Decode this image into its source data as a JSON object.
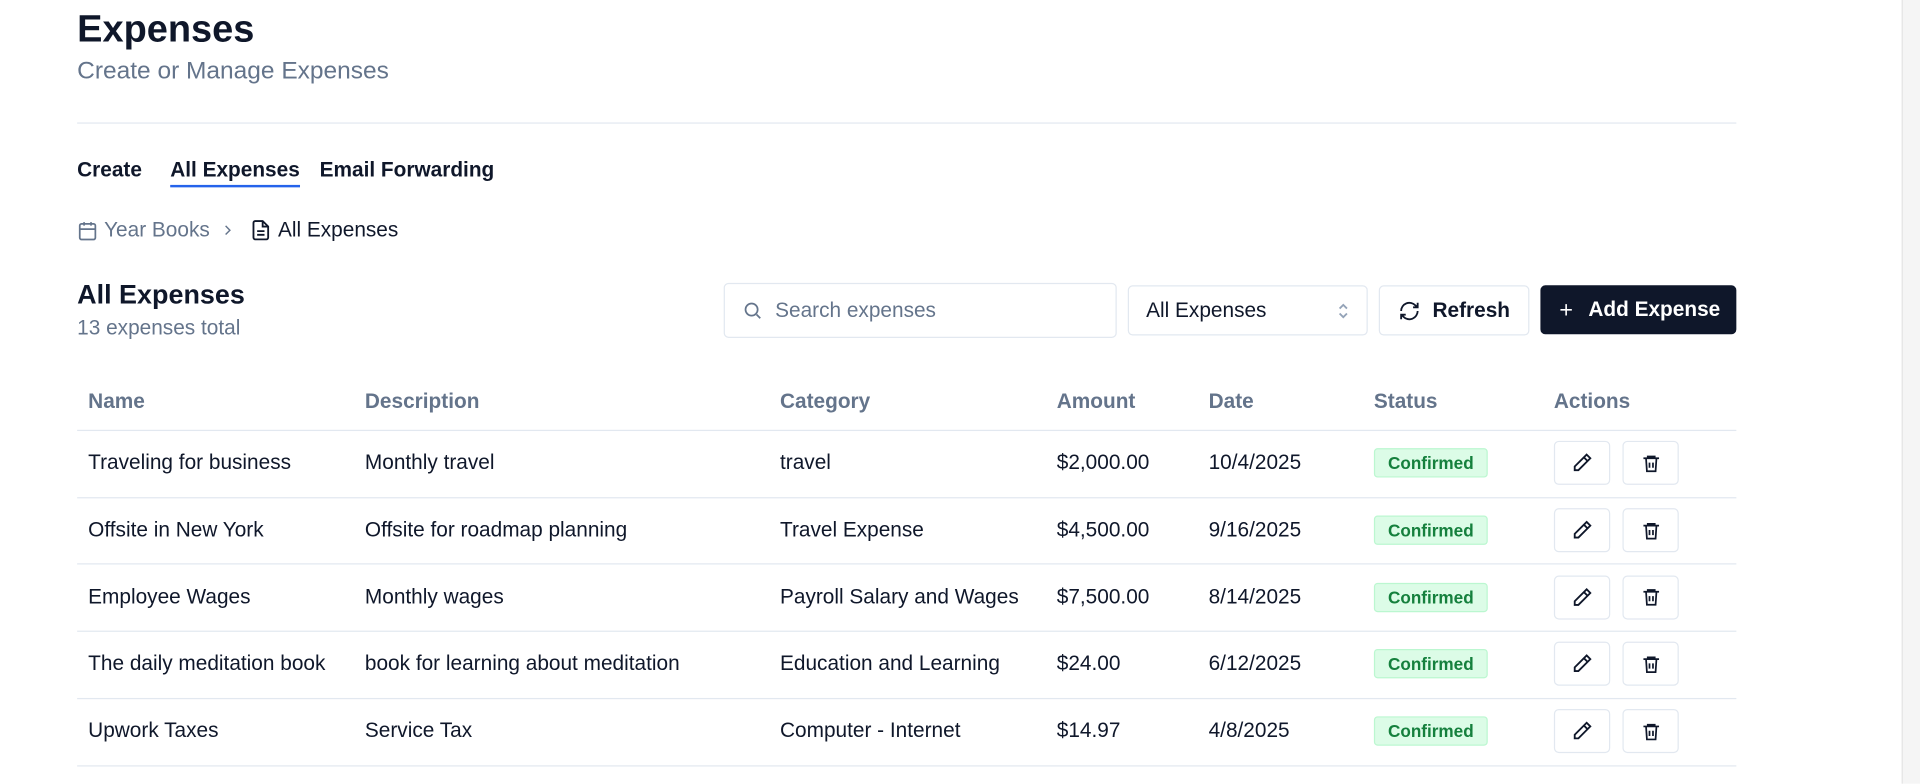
{
  "header": {
    "title": "Expenses",
    "subtitle": "Create or Manage Expenses"
  },
  "tabs": [
    "Create",
    "All Expenses",
    "Email Forwarding"
  ],
  "breadcrumb": [
    "Year Books",
    "All Expenses"
  ],
  "section": {
    "title": "All Expenses",
    "count": "13 expenses total"
  },
  "toolbar": {
    "search_placeholder": "Search expenses",
    "filter": "All Expenses",
    "refresh": "Refresh",
    "add": "Add Expense"
  },
  "table": {
    "columns": [
      "Name",
      "Description",
      "Category",
      "Amount",
      "Date",
      "Status",
      "Actions"
    ],
    "rows": [
      [
        "Traveling for business",
        "Monthly travel",
        "travel",
        "$2,000.00",
        "10/4/2025",
        "Confirmed"
      ],
      [
        "Offsite in New York",
        "Offsite for roadmap planning",
        "Travel Expense",
        "$4,500.00",
        "9/16/2025",
        "Confirmed"
      ],
      [
        "Employee Wages",
        "Monthly wages",
        "Payroll Salary and Wages",
        "$7,500.00",
        "8/14/2025",
        "Confirmed"
      ],
      [
        "The daily meditation book",
        "book for learning about meditation",
        "Education and Learning",
        "$24.00",
        "6/12/2025",
        "Confirmed"
      ],
      [
        "Upwork Taxes",
        "Service Tax",
        "Computer - Internet",
        "$14.97",
        "4/8/2025",
        "Confirmed"
      ]
    ]
  }
}
